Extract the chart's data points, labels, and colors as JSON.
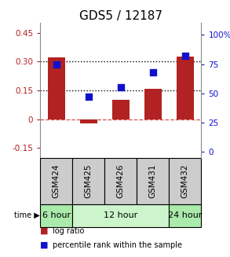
{
  "title": "GDS5 / 12187",
  "samples": [
    "GSM424",
    "GSM425",
    "GSM426",
    "GSM431",
    "GSM432"
  ],
  "log_ratio": [
    0.32,
    -0.02,
    0.1,
    0.16,
    0.325
  ],
  "percentile_rank": [
    75,
    47,
    55,
    68,
    82
  ],
  "bar_color": "#b22222",
  "dot_color": "#1111cc",
  "ylim_left": [
    -0.2,
    0.5
  ],
  "ylim_right": [
    -5,
    110
  ],
  "yticks_left": [
    -0.15,
    0.0,
    0.15,
    0.3,
    0.45
  ],
  "yticks_right": [
    0,
    25,
    50,
    75,
    100
  ],
  "ytick_labels_left": [
    "-0.15",
    "0",
    "0.15",
    "0.30",
    "0.45"
  ],
  "ytick_labels_right": [
    "0",
    "25",
    "50",
    "75",
    "100%"
  ],
  "hlines": [
    0.15,
    0.3
  ],
  "zero_line": 0.0,
  "time_groups": [
    {
      "label": "6 hour",
      "start": 0,
      "end": 1,
      "color": "#aaeaaa"
    },
    {
      "label": "12 hour",
      "start": 1,
      "end": 4,
      "color": "#ccf5cc"
    },
    {
      "label": "24 hour",
      "start": 4,
      "end": 5,
      "color": "#aaeaaa"
    }
  ],
  "legend_items": [
    {
      "label": "log ratio",
      "color": "#b22222"
    },
    {
      "label": "percentile rank within the sample",
      "color": "#1111cc"
    }
  ],
  "bar_width": 0.55,
  "title_fontsize": 11,
  "tick_fontsize": 7.5,
  "sample_fontsize": 7.5,
  "time_fontsize": 8,
  "legend_fontsize": 7
}
